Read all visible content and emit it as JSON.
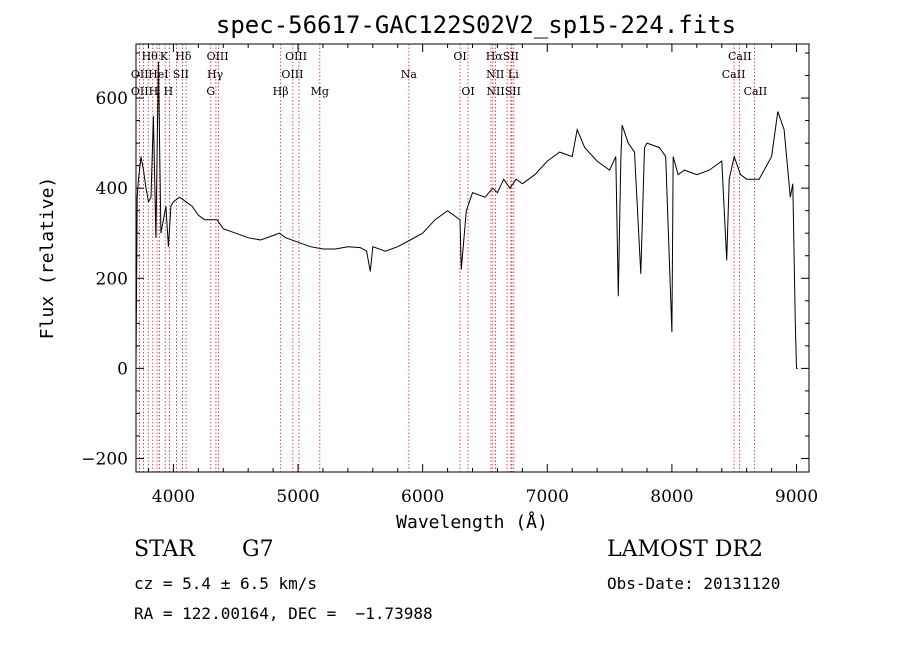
{
  "chart_data": {
    "type": "line",
    "title": "spec-56617-GAC122S02V2_sp15-224.fits",
    "xlabel": "Wavelength (Å)",
    "ylabel": "Flux (relative)",
    "xlim": [
      3700,
      9100
    ],
    "ylim": [
      -230,
      720
    ],
    "xticks": [
      4000,
      5000,
      6000,
      7000,
      8000,
      9000
    ],
    "xtick_labels": [
      "4000",
      "5000",
      "6000",
      "7000",
      "8000",
      "9000"
    ],
    "yticks": [
      -200,
      0,
      200,
      400,
      600
    ],
    "ytick_labels": [
      "−200",
      "0",
      "200",
      "400",
      "600"
    ],
    "grid": false,
    "line_color": "#000000",
    "marker_color": "#cc2222",
    "series": [
      {
        "x": [
          3700,
          3710,
          3720,
          3740,
          3760,
          3780,
          3800,
          3820,
          3840,
          3860,
          3880,
          3900,
          3920,
          3940,
          3960,
          3980,
          4000,
          4050,
          4100,
          4150,
          4200,
          4250,
          4300,
          4350,
          4400,
          4500,
          4600,
          4700,
          4800,
          4850,
          4900,
          5000,
          5100,
          5200,
          5300,
          5400,
          5500,
          5550,
          5580,
          5600,
          5700,
          5800,
          5900,
          6000,
          6100,
          6200,
          6300,
          6310,
          6350,
          6400,
          6500,
          6563,
          6600,
          6650,
          6700,
          6750,
          6800,
          6900,
          7000,
          7100,
          7200,
          7240,
          7300,
          7400,
          7500,
          7550,
          7570,
          7590,
          7600,
          7650,
          7700,
          7750,
          7780,
          7800,
          7900,
          7950,
          8000,
          8010,
          8050,
          8100,
          8200,
          8300,
          8400,
          8440,
          8460,
          8500,
          8550,
          8600,
          8700,
          8800,
          8850,
          8900,
          8950,
          8970,
          8990,
          9000,
          9010
        ],
        "y": [
          0,
          380,
          420,
          470,
          440,
          400,
          370,
          380,
          560,
          290,
          680,
          300,
          330,
          360,
          270,
          360,
          370,
          380,
          370,
          360,
          340,
          330,
          330,
          330,
          310,
          300,
          290,
          285,
          295,
          300,
          290,
          280,
          270,
          265,
          265,
          270,
          268,
          260,
          215,
          270,
          260,
          270,
          285,
          300,
          330,
          350,
          330,
          220,
          350,
          390,
          380,
          400,
          390,
          420,
          400,
          420,
          410,
          430,
          460,
          480,
          470,
          530,
          490,
          460,
          440,
          470,
          160,
          460,
          540,
          500,
          480,
          210,
          490,
          500,
          490,
          470,
          80,
          470,
          430,
          440,
          430,
          440,
          460,
          240,
          420,
          470,
          430,
          420,
          420,
          470,
          570,
          530,
          380,
          410,
          100,
          0,
          0
        ]
      }
    ],
    "line_marks": {
      "wavelengths": [
        3727,
        3760,
        3798,
        3835,
        3869,
        3889,
        3934,
        3969,
        4026,
        4072,
        4102,
        4300,
        4341,
        4363,
        4861,
        4959,
        5007,
        5175,
        5890,
        6300,
        6364,
        6548,
        6563,
        6584,
        6678,
        6708,
        6716,
        6731,
        8498,
        8542,
        8662
      ],
      "labels": [
        {
          "text": "Hθ",
          "x": 3810,
          "row": 0
        },
        {
          "text": "K",
          "x": 3925,
          "row": 0
        },
        {
          "text": "Hδ",
          "x": 4080,
          "row": 0
        },
        {
          "text": "OIII",
          "x": 4355,
          "row": 0
        },
        {
          "text": "OIII",
          "x": 4985,
          "row": 0
        },
        {
          "text": "OI",
          "x": 6300,
          "row": 0
        },
        {
          "text": "HαSII",
          "x": 6640,
          "row": 0
        },
        {
          "text": "CaII",
          "x": 8545,
          "row": 0
        },
        {
          "text": "OII",
          "x": 3730,
          "row": 1
        },
        {
          "text": "HeI",
          "x": 3880,
          "row": 1
        },
        {
          "text": "SII",
          "x": 4060,
          "row": 1
        },
        {
          "text": "Hγ",
          "x": 4335,
          "row": 1
        },
        {
          "text": "OIII",
          "x": 4955,
          "row": 1
        },
        {
          "text": "Na",
          "x": 5890,
          "row": 1
        },
        {
          "text": "NII Li",
          "x": 6640,
          "row": 1
        },
        {
          "text": "CaII",
          "x": 8495,
          "row": 1
        },
        {
          "text": "OII",
          "x": 3730,
          "row": 2
        },
        {
          "text": "H",
          "x": 3840,
          "row": 2
        },
        {
          "text": "H",
          "x": 3960,
          "row": 2
        },
        {
          "text": "G",
          "x": 4300,
          "row": 2
        },
        {
          "text": "Hβ",
          "x": 4860,
          "row": 2
        },
        {
          "text": "Mg",
          "x": 5175,
          "row": 2
        },
        {
          "text": "OI",
          "x": 6364,
          "row": 2
        },
        {
          "text": "NIISII",
          "x": 6650,
          "row": 2
        },
        {
          "text": "CaII",
          "x": 8670,
          "row": 2
        }
      ]
    }
  },
  "info": {
    "object_class": "STAR",
    "subclass": "G7",
    "cz": "cz = 5.4 ± 6.5 km/s",
    "coords": "RA = 122.00164, DEC =  −1.73988",
    "survey": "LAMOST DR2",
    "obs_date": "Obs-Date: 20131120"
  }
}
